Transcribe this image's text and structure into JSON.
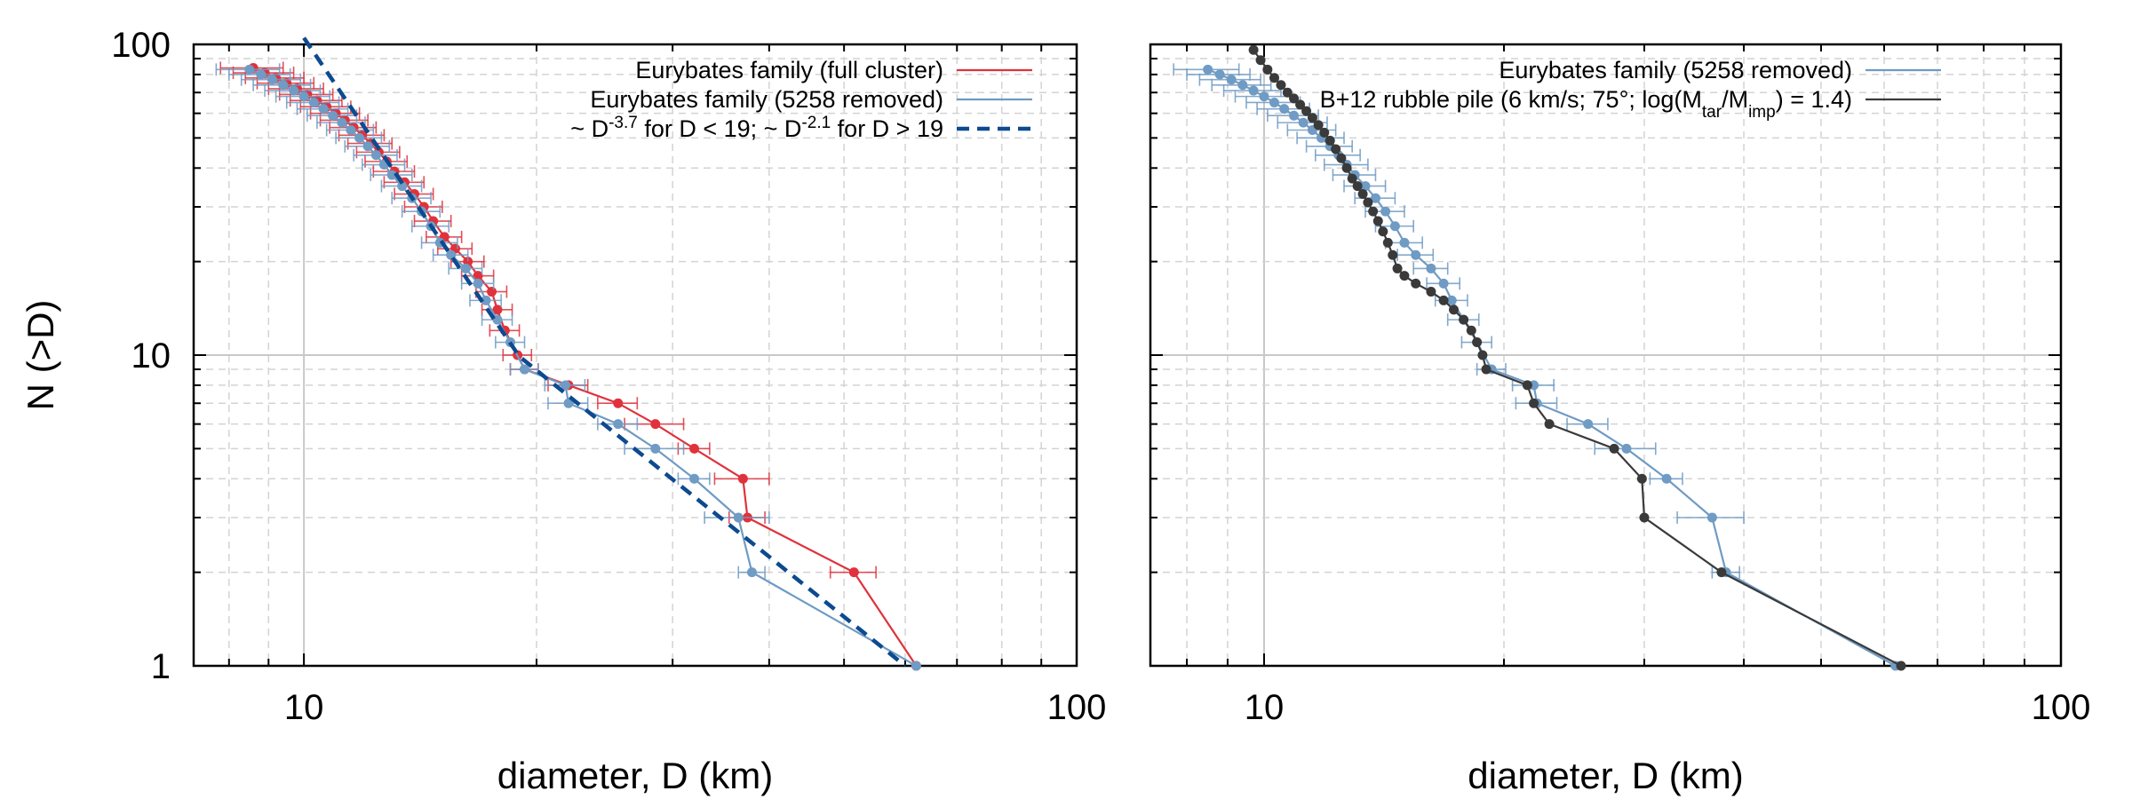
{
  "chart_data": [
    {
      "type": "line",
      "panel": "left",
      "xlabel": "diameter, D (km)",
      "ylabel": "N (>D)",
      "xscale": "log",
      "yscale": "log",
      "xlim": [
        7.2,
        100
      ],
      "ylim": [
        1,
        100
      ],
      "x_ticks": [
        {
          "value": 10,
          "label": "10"
        },
        {
          "value": 100,
          "label": "100"
        }
      ],
      "y_ticks": [
        {
          "value": 1,
          "label": "1"
        },
        {
          "value": 10,
          "label": "10"
        },
        {
          "value": 100,
          "label": "100"
        }
      ],
      "legend": {
        "placement": "top-right",
        "entries": [
          {
            "label": "Eurybates family (full cluster)",
            "color": "#e0323c",
            "style": "solid"
          },
          {
            "label": "Eurybates family (5258 removed)",
            "color": "#6f9bc4",
            "style": "solid"
          },
          {
            "label_parts": [
              "~ D",
              "-3.7",
              " for D < 19; ~ D",
              "-2.1",
              " for D > 19"
            ],
            "color": "#0d4a8f",
            "style": "dashed"
          }
        ]
      },
      "series": [
        {
          "name": "Eurybates family (full cluster)",
          "color": "#e0323c",
          "x": [
            62.0,
            51.5,
            37.5,
            37.0,
            32.0,
            28.5,
            25.5,
            22.0,
            19.3,
            18.9,
            18.2,
            17.8,
            17.5,
            16.8,
            16.3,
            15.7,
            15.2,
            14.7,
            14.3,
            13.9,
            13.5,
            13.1,
            12.8,
            12.5,
            12.2,
            11.9,
            11.6,
            11.3,
            11.0,
            10.7,
            10.4,
            10.1,
            9.8,
            9.5,
            9.2,
            8.9,
            8.6
          ],
          "y": [
            1,
            2,
            3,
            4,
            5,
            6,
            7,
            8,
            9,
            10,
            12,
            14,
            16,
            18,
            20,
            22,
            24,
            27,
            30,
            33,
            36,
            39,
            42,
            45,
            48,
            51,
            54,
            57,
            60,
            63,
            66,
            69,
            72,
            75,
            78,
            81,
            84
          ],
          "xerr": [
            0,
            3.5,
            2.0,
            3.0,
            1.5,
            2.5,
            1.5,
            1.3,
            0.8,
            0.8,
            0.8,
            0.8,
            0.8,
            0.8,
            0.8,
            0.8,
            0.8,
            0.8,
            0.8,
            0.8,
            0.8,
            0.8,
            0.8,
            0.8,
            0.8,
            0.8,
            0.8,
            0.8,
            0.8,
            0.8,
            0.8,
            0.8,
            0.8,
            0.8,
            0.8,
            0.8,
            0.8
          ]
        },
        {
          "name": "Eurybates family (5258 removed)",
          "color": "#6f9bc4",
          "x": [
            62.0,
            38.0,
            36.5,
            32.0,
            28.5,
            25.5,
            22.0,
            21.8,
            19.3,
            18.5,
            17.8,
            17.2,
            16.8,
            16.2,
            15.5,
            15.0,
            14.6,
            14.2,
            13.8,
            13.4,
            13.0,
            12.7,
            12.4,
            12.1,
            11.8,
            11.5,
            11.2,
            10.9,
            10.6,
            10.3,
            10.0,
            9.7,
            9.4,
            9.1,
            8.8,
            8.5
          ],
          "y": [
            1,
            2,
            3,
            4,
            5,
            6,
            7,
            8,
            9,
            11,
            13,
            15,
            17,
            19,
            21,
            23,
            26,
            29,
            32,
            35,
            38,
            41,
            44,
            47,
            50,
            53,
            56,
            59,
            62,
            65,
            68,
            71,
            74,
            77,
            80,
            83
          ],
          "xerr": [
            0,
            1.5,
            3.5,
            1.5,
            2.5,
            1.5,
            1.3,
            1.3,
            0.8,
            0.8,
            0.8,
            0.8,
            0.8,
            0.8,
            0.8,
            0.8,
            0.8,
            0.8,
            0.8,
            0.8,
            0.8,
            0.8,
            0.8,
            0.8,
            0.8,
            0.8,
            0.8,
            0.8,
            0.8,
            0.8,
            0.8,
            0.8,
            0.8,
            0.8,
            0.8,
            0.8
          ]
        },
        {
          "name": "~ D^-3.7 for D < 19; ~ D^-2.1 for D > 19",
          "color": "#0d4a8f",
          "style": "dashed",
          "x": [
            10.0,
            19.0,
            60.0
          ],
          "y": [
            105,
            9.9,
            1.0
          ]
        }
      ]
    },
    {
      "type": "line",
      "panel": "right",
      "xlabel": "diameter, D (km)",
      "xscale": "log",
      "yscale": "log",
      "xlim": [
        7.2,
        100
      ],
      "ylim": [
        1,
        100
      ],
      "x_ticks": [
        {
          "value": 10,
          "label": "10"
        },
        {
          "value": 100,
          "label": "100"
        }
      ],
      "legend": {
        "placement": "top-right",
        "entries": [
          {
            "label": "Eurybates family (5258 removed)",
            "color": "#6f9bc4",
            "style": "solid"
          },
          {
            "label_parts": [
              "B+12 rubble pile (6 km/s; 75°; log(M",
              "tar",
              "/M",
              "imp",
              ") = 1.4)"
            ],
            "color": "#3a3a3a",
            "style": "solid"
          }
        ]
      },
      "series": [
        {
          "name": "Eurybates family (5258 removed)",
          "color": "#6f9bc4",
          "x": [
            62.0,
            38.0,
            36.5,
            32.0,
            28.5,
            25.5,
            22.0,
            21.8,
            19.3,
            18.5,
            17.8,
            17.2,
            16.8,
            16.2,
            15.5,
            15.0,
            14.6,
            14.2,
            13.8,
            13.4,
            13.0,
            12.7,
            12.4,
            12.1,
            11.8,
            11.5,
            11.2,
            10.9,
            10.6,
            10.3,
            10.0,
            9.7,
            9.4,
            9.1,
            8.8,
            8.5
          ],
          "y": [
            1,
            2,
            3,
            4,
            5,
            6,
            7,
            8,
            9,
            11,
            13,
            15,
            17,
            19,
            21,
            23,
            26,
            29,
            32,
            35,
            38,
            41,
            44,
            47,
            50,
            53,
            56,
            59,
            62,
            65,
            68,
            71,
            74,
            77,
            80,
            83
          ],
          "xerr": [
            0,
            1.5,
            3.5,
            1.5,
            2.5,
            1.5,
            1.3,
            1.3,
            0.8,
            0.8,
            0.8,
            0.8,
            0.8,
            0.8,
            0.8,
            0.8,
            0.8,
            0.8,
            0.8,
            0.8,
            0.8,
            0.8,
            0.8,
            0.8,
            0.8,
            0.8,
            0.8,
            0.8,
            0.8,
            0.8,
            0.8,
            0.8,
            0.8,
            0.8,
            0.8,
            0.8
          ]
        },
        {
          "name": "B+12 rubble pile (6 km/s; 75°; log(Mtar/Mimp) = 1.4)",
          "color": "#3a3a3a",
          "x": [
            63.0,
            37.5,
            30.0,
            29.8,
            27.5,
            22.8,
            21.8,
            21.4,
            19.0,
            18.8,
            18.5,
            18.2,
            17.8,
            17.3,
            16.8,
            16.2,
            15.5,
            15.0,
            14.7,
            14.5,
            14.3,
            14.1,
            13.9,
            13.7,
            13.5,
            13.3,
            13.1,
            12.9,
            12.7,
            12.5,
            12.3,
            12.1,
            11.9,
            11.7,
            11.5,
            11.3,
            11.1,
            10.9,
            10.7,
            10.5,
            10.3,
            10.1,
            9.9,
            9.7
          ],
          "y": [
            1,
            2,
            3,
            4,
            5,
            6,
            7,
            8,
            9,
            10,
            11,
            12,
            13,
            14,
            15,
            16,
            17,
            18,
            19,
            21,
            23,
            25,
            27,
            29,
            31,
            33,
            35,
            37,
            40,
            43,
            46,
            49,
            52,
            55,
            58,
            61,
            64,
            67,
            70,
            74,
            78,
            83,
            89,
            96
          ]
        }
      ]
    }
  ]
}
